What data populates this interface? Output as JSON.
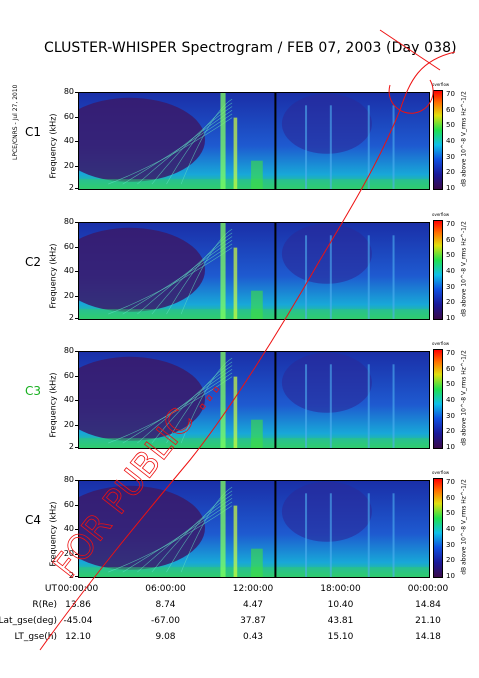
{
  "title": "CLUSTER-WHISPER Spectrogram / FEB 07, 2003 (Day 038)",
  "credit": "LPCE/CNRS - Jul 27, 2010",
  "watermark_text": "FOR PUBLIC ...",
  "chart_data": {
    "type": "heatmap",
    "xlabel": "UT",
    "ylabel": "Frequency (kHz)",
    "y_ticks": [
      "80",
      "60",
      "40",
      "20",
      "2"
    ],
    "y_values": [
      80,
      60,
      40,
      20,
      2
    ],
    "ylim": [
      2,
      80
    ],
    "colorbar": {
      "label": "dB above 10^-8 V_rms Hz^-1/2",
      "unit_note": "overflow",
      "ticks": [
        "70",
        "60",
        "50",
        "40",
        "30",
        "20",
        "10"
      ],
      "range": [
        10,
        70
      ]
    },
    "panels": [
      {
        "name": "C1",
        "color": "#000000"
      },
      {
        "name": "C2",
        "color": "#000000"
      },
      {
        "name": "C3",
        "color": "#18b020"
      },
      {
        "name": "C4",
        "color": "#000000"
      }
    ],
    "x_ticks": [
      "00:00:00",
      "06:00:00",
      "12:00:00",
      "18:00:00",
      "00:00:00"
    ],
    "x_hours": [
      0,
      6,
      12,
      18,
      24
    ],
    "ephemeris": [
      {
        "label": "UT",
        "values": [
          "00:00:00",
          "06:00:00",
          "12:00:00",
          "18:00:00",
          "00:00:00"
        ]
      },
      {
        "label": "R(Re)",
        "values": [
          "13.86",
          "8.74",
          "4.47",
          "10.40",
          "14.84"
        ]
      },
      {
        "label": "Lat_gse(deg)",
        "values": [
          "-45.04",
          "-67.00",
          "37.87",
          "43.81",
          "21.10"
        ]
      },
      {
        "label": "LT_gse(h)",
        "values": [
          "12.10",
          "9.08",
          "0.43",
          "15.10",
          "14.18"
        ]
      }
    ]
  }
}
